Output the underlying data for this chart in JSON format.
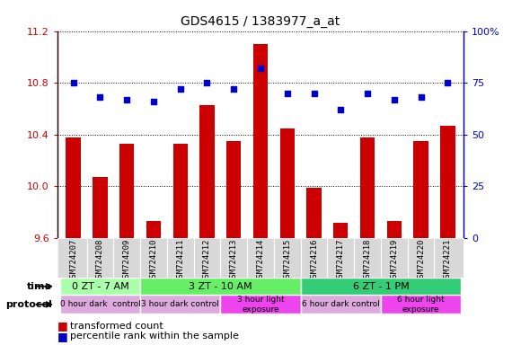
{
  "title": "GDS4615 / 1383977_a_at",
  "samples": [
    "GSM724207",
    "GSM724208",
    "GSM724209",
    "GSM724210",
    "GSM724211",
    "GSM724212",
    "GSM724213",
    "GSM724214",
    "GSM724215",
    "GSM724216",
    "GSM724217",
    "GSM724218",
    "GSM724219",
    "GSM724220",
    "GSM724221"
  ],
  "transformed_count": [
    10.38,
    10.07,
    10.33,
    9.73,
    10.33,
    10.63,
    10.35,
    11.1,
    10.45,
    9.99,
    9.72,
    10.38,
    9.73,
    10.35,
    10.47
  ],
  "percentile_rank": [
    75,
    68,
    67,
    66,
    72,
    75,
    72,
    82,
    70,
    70,
    62,
    70,
    67,
    68,
    75
  ],
  "ylim_left": [
    9.6,
    11.2
  ],
  "ylim_right": [
    0,
    100
  ],
  "yticks_left": [
    9.6,
    10.0,
    10.4,
    10.8,
    11.2
  ],
  "yticks_right": [
    0,
    25,
    50,
    75,
    100
  ],
  "bar_color": "#cc0000",
  "dot_color": "#0000cc",
  "time_groups": [
    {
      "label": "0 ZT - 7 AM",
      "start": 0,
      "end": 3
    },
    {
      "label": "3 ZT - 10 AM",
      "start": 3,
      "end": 9
    },
    {
      "label": "6 ZT - 1 PM",
      "start": 9,
      "end": 15
    }
  ],
  "time_colors": [
    "#aaffaa",
    "#66ee66",
    "#33cc77"
  ],
  "protocol_groups": [
    {
      "label": "0 hour dark  control",
      "start": 0,
      "end": 3
    },
    {
      "label": "3 hour dark control",
      "start": 3,
      "end": 6
    },
    {
      "label": "3 hour light\nexposure",
      "start": 6,
      "end": 9
    },
    {
      "label": "6 hour dark control",
      "start": 9,
      "end": 12
    },
    {
      "label": "6 hour light\nexposure",
      "start": 12,
      "end": 15
    }
  ],
  "protocol_colors": [
    "#ddaadd",
    "#ddaadd",
    "#ee44ee",
    "#ddaadd",
    "#ee44ee"
  ],
  "legend_red_label": "transformed count",
  "legend_blue_label": "percentile rank within the sample",
  "bar_bottom": 9.6,
  "xlabels_bg": "#d8d8d8"
}
